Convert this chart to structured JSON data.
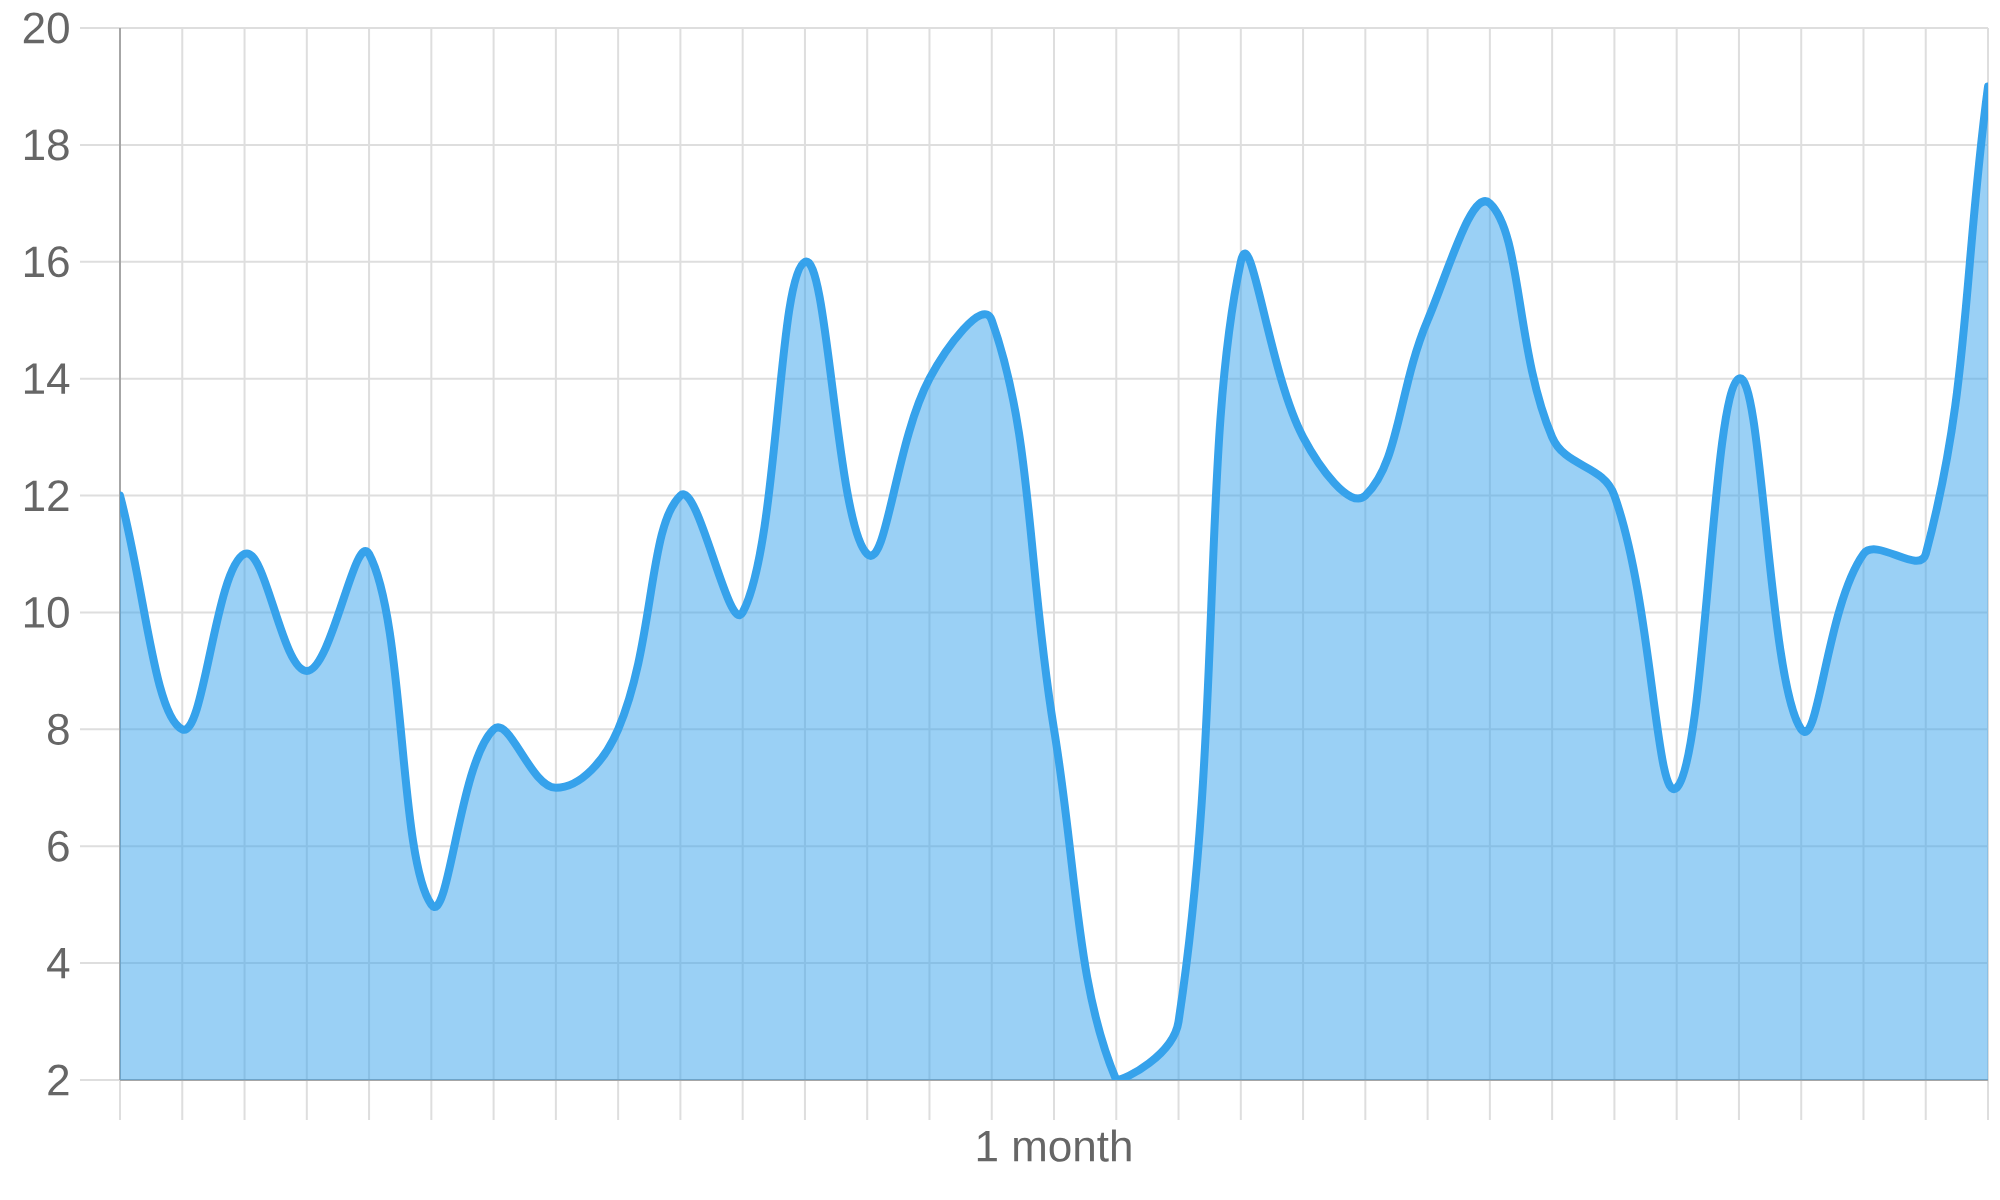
{
  "chart_data": {
    "type": "area",
    "categories": [
      null,
      null,
      null,
      null,
      null,
      null,
      null,
      null,
      null,
      null,
      null,
      null,
      null,
      null,
      null,
      "1 month",
      null,
      null,
      null,
      null,
      null,
      null,
      null,
      null,
      null,
      null,
      null,
      null,
      null,
      null,
      null
    ],
    "values": [
      12,
      8,
      11,
      9,
      11,
      5,
      8,
      7,
      8,
      12,
      10,
      16,
      11,
      14,
      15,
      8,
      2,
      3,
      16,
      13,
      12,
      15,
      17,
      13,
      12,
      7,
      14,
      8,
      11,
      11,
      19
    ],
    "color": "#36a2eb",
    "ylim": [
      2,
      20
    ],
    "yticks": [
      2,
      4,
      6,
      8,
      10,
      12,
      14,
      16,
      18,
      20
    ],
    "grid": true
  }
}
